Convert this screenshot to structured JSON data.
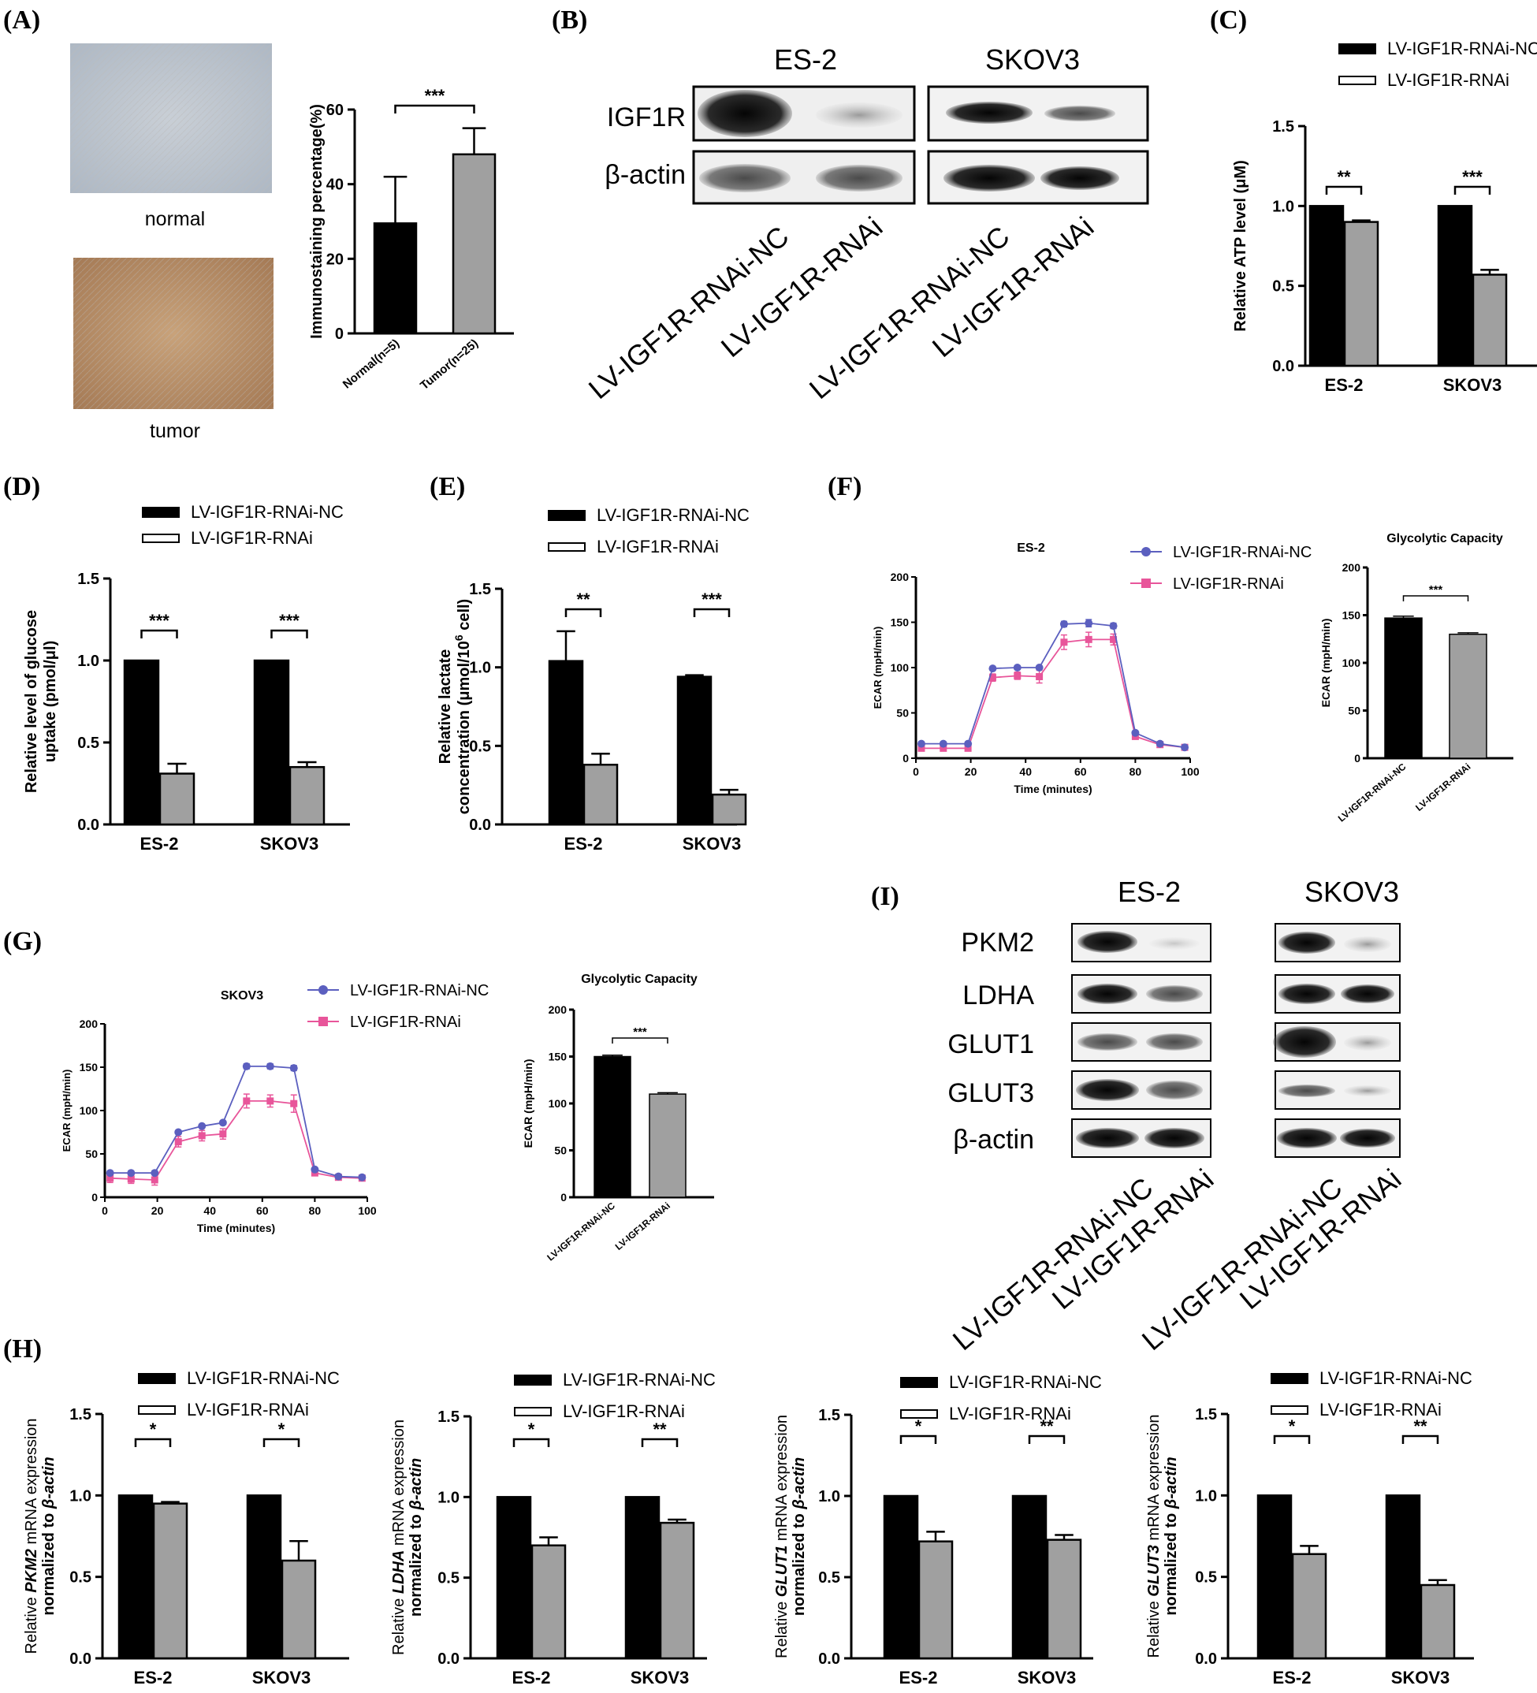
{
  "colors": {
    "nc": "#000000",
    "rnai": "#a0a0a0",
    "line_nc": "#5b5fbf",
    "line_rnai": "#e8559a"
  },
  "legend": {
    "nc": "LV-IGF1R-RNAi-NC",
    "rnai": "LV-IGF1R-RNAi"
  },
  "panels": {
    "A": "(A)",
    "B": "(B)",
    "C": "(C)",
    "D": "(D)",
    "E": "(E)",
    "F": "(F)",
    "G": "(G)",
    "H": "(H)",
    "I": "(I)"
  },
  "panelA": {
    "normal_caption": "normal",
    "tumor_caption": "tumor"
  },
  "blotB": {
    "cell_lines": [
      "ES-2",
      "SKOV3"
    ],
    "rows": [
      "IGF1R",
      "β-actin"
    ],
    "lanes": [
      "LV-IGF1R-RNAi-NC",
      "LV-IGF1R-RNAi",
      "LV-IGF1R-RNAi-NC",
      "LV-IGF1R-RNAi"
    ]
  },
  "blotI": {
    "cell_lines": [
      "ES-2",
      "SKOV3"
    ],
    "rows": [
      "PKM2",
      "LDHA",
      "GLUT1",
      "GLUT3",
      "β-actin"
    ],
    "lanes": [
      "LV-IGF1R-RNAi-NC",
      "LV-IGF1R-RNAi",
      "LV-IGF1R-RNAi-NC",
      "LV-IGF1R-RNAi"
    ]
  },
  "chart_data": [
    {
      "id": "A",
      "type": "bar",
      "categories": [
        "Normal(n=5)",
        "Tumor(n=25)"
      ],
      "values": [
        29.5,
        48
      ],
      "errors": [
        12.5,
        7
      ],
      "ylabel": "Immunostaining percentage(%)",
      "ylim": [
        0,
        60
      ],
      "yticks": [
        0,
        20,
        40,
        60
      ],
      "tick_labels": [
        "0",
        "20",
        "40",
        "60"
      ],
      "sig": "***"
    },
    {
      "id": "C",
      "type": "bar",
      "categories": [
        "ES-2",
        "SKOV3"
      ],
      "series": [
        {
          "name": "LV-IGF1R-RNAi-NC",
          "values": [
            1.0,
            1.0
          ],
          "errors": [
            0,
            0
          ]
        },
        {
          "name": "LV-IGF1R-RNAi",
          "values": [
            0.9,
            0.57
          ],
          "errors": [
            0.01,
            0.03
          ]
        }
      ],
      "ylabel": "Relative ATP level (μM)",
      "ylim": [
        0,
        1.5
      ],
      "yticks": [
        0,
        0.5,
        1.0,
        1.5
      ],
      "tick_labels": [
        "0.0",
        "0.5",
        "1.0",
        "1.5"
      ],
      "sig": [
        "**",
        "***"
      ]
    },
    {
      "id": "D",
      "type": "bar",
      "categories": [
        "ES-2",
        "SKOV3"
      ],
      "series": [
        {
          "name": "LV-IGF1R-RNAi-NC",
          "values": [
            1.0,
            1.0
          ],
          "errors": [
            0,
            0
          ]
        },
        {
          "name": "LV-IGF1R-RNAi",
          "values": [
            0.31,
            0.35
          ],
          "errors": [
            0.06,
            0.03
          ]
        }
      ],
      "ylabel": [
        "Relative level of glucose",
        "uptake (pmol/μl)"
      ],
      "ylim": [
        0,
        1.5
      ],
      "yticks": [
        0,
        0.5,
        1.0,
        1.5
      ],
      "tick_labels": [
        "0.0",
        "0.5",
        "1.0",
        "1.5"
      ],
      "sig": [
        "***",
        "***"
      ]
    },
    {
      "id": "E",
      "type": "bar",
      "categories": [
        "ES-2",
        "SKOV3"
      ],
      "series": [
        {
          "name": "LV-IGF1R-RNAi-NC",
          "values": [
            1.04,
            0.94
          ],
          "errors": [
            0.19,
            0.01
          ]
        },
        {
          "name": "LV-IGF1R-RNAi",
          "values": [
            0.38,
            0.19
          ],
          "errors": [
            0.07,
            0.03
          ]
        }
      ],
      "ylabel": [
        "Relative lactate",
        "concentration  (μmol/10",
        "6",
        " cell)"
      ],
      "ylim": [
        0,
        1.5
      ],
      "yticks": [
        0,
        0.5,
        1.0,
        1.5
      ],
      "tick_labels": [
        "0.0",
        "0.5",
        "1.0",
        "1.5"
      ],
      "sig": [
        "**",
        "***"
      ]
    },
    {
      "id": "F-line",
      "type": "line",
      "title": "ES-2",
      "x": [
        2,
        10,
        19,
        28,
        37,
        45,
        54,
        63,
        72,
        80,
        89,
        98
      ],
      "series": [
        {
          "name": "LV-IGF1R-RNAi-NC",
          "values": [
            16,
            16,
            16,
            99,
            100,
            100,
            148,
            149,
            146,
            28,
            16,
            12
          ],
          "errors": [
            1,
            1,
            1,
            2,
            2,
            2,
            3,
            4,
            3,
            2,
            1,
            1
          ]
        },
        {
          "name": "LV-IGF1R-RNAi",
          "values": [
            11,
            11,
            11,
            89,
            91,
            90,
            128,
            131,
            131,
            24,
            15,
            12
          ],
          "errors": [
            1,
            1,
            1,
            4,
            4,
            7,
            8,
            8,
            6,
            2,
            1,
            1
          ]
        }
      ],
      "xlabel": "Time (minutes)",
      "ylabel": "ECAR (mpH/min)",
      "xlim": [
        0,
        100
      ],
      "ylim": [
        0,
        200
      ],
      "xticks": [
        0,
        20,
        40,
        60,
        80,
        100
      ],
      "xtick_labels": [
        "0",
        "20",
        "40",
        "60",
        "80",
        "100"
      ],
      "yticks": [
        0,
        50,
        100,
        150,
        200
      ],
      "ytick_labels": [
        "0",
        "50",
        "100",
        "150",
        "200"
      ]
    },
    {
      "id": "F-bar",
      "type": "bar",
      "title": "Glycolytic Capacity",
      "categories": [
        "LV-IGF1R-RNAi-NC",
        "LV-IGF1R-RNAi"
      ],
      "values": [
        147,
        130
      ],
      "errors": [
        2,
        1.5
      ],
      "ylabel": "ECAR (mpH/min)",
      "ylim": [
        0,
        200
      ],
      "yticks": [
        0,
        50,
        100,
        150,
        200
      ],
      "tick_labels": [
        "0",
        "50",
        "100",
        "150",
        "200"
      ],
      "sig": "***"
    },
    {
      "id": "G-line",
      "type": "line",
      "title": "SKOV3",
      "x": [
        2,
        10,
        19,
        28,
        37,
        45,
        54,
        63,
        72,
        80,
        89,
        98
      ],
      "series": [
        {
          "name": "LV-IGF1R-RNAi-NC",
          "values": [
            28,
            28,
            28,
            75,
            82,
            86,
            151,
            151,
            149,
            32,
            24,
            23
          ],
          "errors": [
            1,
            1,
            1,
            2,
            2,
            2,
            3,
            3,
            3,
            2,
            1,
            1
          ]
        },
        {
          "name": "LV-IGF1R-RNAi",
          "values": [
            22,
            21,
            20,
            64,
            71,
            73,
            111,
            111,
            108,
            28,
            23,
            22
          ],
          "errors": [
            5,
            5,
            6,
            6,
            6,
            6,
            8,
            7,
            10,
            3,
            2,
            2
          ]
        }
      ],
      "xlabel": "Time (minutes)",
      "ylabel": "ECAR (mpH/min)",
      "xlim": [
        0,
        100
      ],
      "ylim": [
        0,
        200
      ],
      "xticks": [
        0,
        20,
        40,
        60,
        80,
        100
      ],
      "xtick_labels": [
        "0",
        "20",
        "40",
        "60",
        "80",
        "100"
      ],
      "yticks": [
        0,
        50,
        100,
        150,
        200
      ],
      "ytick_labels": [
        "0",
        "50",
        "100",
        "150",
        "200"
      ]
    },
    {
      "id": "G-bar",
      "type": "bar",
      "title": "Glycolytic Capacity",
      "categories": [
        "LV-IGF1R-RNAi-NC",
        "LV-IGF1R-RNAi"
      ],
      "values": [
        150,
        110
      ],
      "errors": [
        1.5,
        1.5
      ],
      "ylabel": "ECAR (mpH/min)",
      "ylim": [
        0,
        200
      ],
      "yticks": [
        0,
        50,
        100,
        150,
        200
      ],
      "tick_labels": [
        "0",
        "50",
        "100",
        "150",
        "200"
      ],
      "sig": "***"
    },
    {
      "id": "H1",
      "type": "bar",
      "categories": [
        "ES-2",
        "SKOV3"
      ],
      "series": [
        {
          "name": "LV-IGF1R-RNAi-NC",
          "values": [
            1.0,
            1.0
          ],
          "errors": [
            0,
            0
          ]
        },
        {
          "name": "LV-IGF1R-RNAi",
          "values": [
            0.95,
            0.6
          ],
          "errors": [
            0.01,
            0.12
          ]
        }
      ],
      "ylabel": [
        "Relative ",
        "PKM2",
        " mRNA expression",
        "normalized to ",
        "β-actin"
      ],
      "ylim": [
        0,
        1.5
      ],
      "yticks": [
        0,
        0.5,
        1.0,
        1.5
      ],
      "tick_labels": [
        "0.0",
        "0.5",
        "1.0",
        "1.5"
      ],
      "sig": [
        "*",
        "*"
      ]
    },
    {
      "id": "H2",
      "type": "bar",
      "categories": [
        "ES-2",
        "SKOV3"
      ],
      "series": [
        {
          "name": "LV-IGF1R-RNAi-NC",
          "values": [
            1.0,
            1.0
          ],
          "errors": [
            0,
            0
          ]
        },
        {
          "name": "LV-IGF1R-RNAi",
          "values": [
            0.7,
            0.84
          ],
          "errors": [
            0.05,
            0.02
          ]
        }
      ],
      "ylabel": [
        "Relative ",
        "LDHA",
        " mRNA expression",
        "normalized to ",
        "β-actin"
      ],
      "ylim": [
        0,
        1.5
      ],
      "yticks": [
        0,
        0.5,
        1.0,
        1.5
      ],
      "tick_labels": [
        "0.0",
        "0.5",
        "1.0",
        "1.5"
      ],
      "sig": [
        "*",
        "**"
      ]
    },
    {
      "id": "H3",
      "type": "bar",
      "categories": [
        "ES-2",
        "SKOV3"
      ],
      "series": [
        {
          "name": "LV-IGF1R-RNAi-NC",
          "values": [
            1.0,
            1.0
          ],
          "errors": [
            0,
            0
          ]
        },
        {
          "name": "LV-IGF1R-RNAi",
          "values": [
            0.72,
            0.73
          ],
          "errors": [
            0.06,
            0.03
          ]
        }
      ],
      "ylabel": [
        "Relative ",
        "GLUT1",
        " mRNA expression",
        "normalized to ",
        "β-actin"
      ],
      "ylim": [
        0,
        1.5
      ],
      "yticks": [
        0,
        0.5,
        1.0,
        1.5
      ],
      "tick_labels": [
        "0.0",
        "0.5",
        "1.0",
        "1.5"
      ],
      "sig": [
        "*",
        "**"
      ]
    },
    {
      "id": "H4",
      "type": "bar",
      "categories": [
        "ES-2",
        "SKOV3"
      ],
      "series": [
        {
          "name": "LV-IGF1R-RNAi-NC",
          "values": [
            1.0,
            1.0
          ],
          "errors": [
            0,
            0
          ]
        },
        {
          "name": "LV-IGF1R-RNAi",
          "values": [
            0.64,
            0.45
          ],
          "errors": [
            0.05,
            0.03
          ]
        }
      ],
      "ylabel": [
        "Relative ",
        "GLUT3",
        " mRNA expression",
        "normalized to ",
        "β-actin"
      ],
      "ylim": [
        0,
        1.5
      ],
      "yticks": [
        0,
        0.5,
        1.0,
        1.5
      ],
      "tick_labels": [
        "0.0",
        "0.5",
        "1.0",
        "1.5"
      ],
      "sig": [
        "*",
        "**"
      ]
    }
  ]
}
